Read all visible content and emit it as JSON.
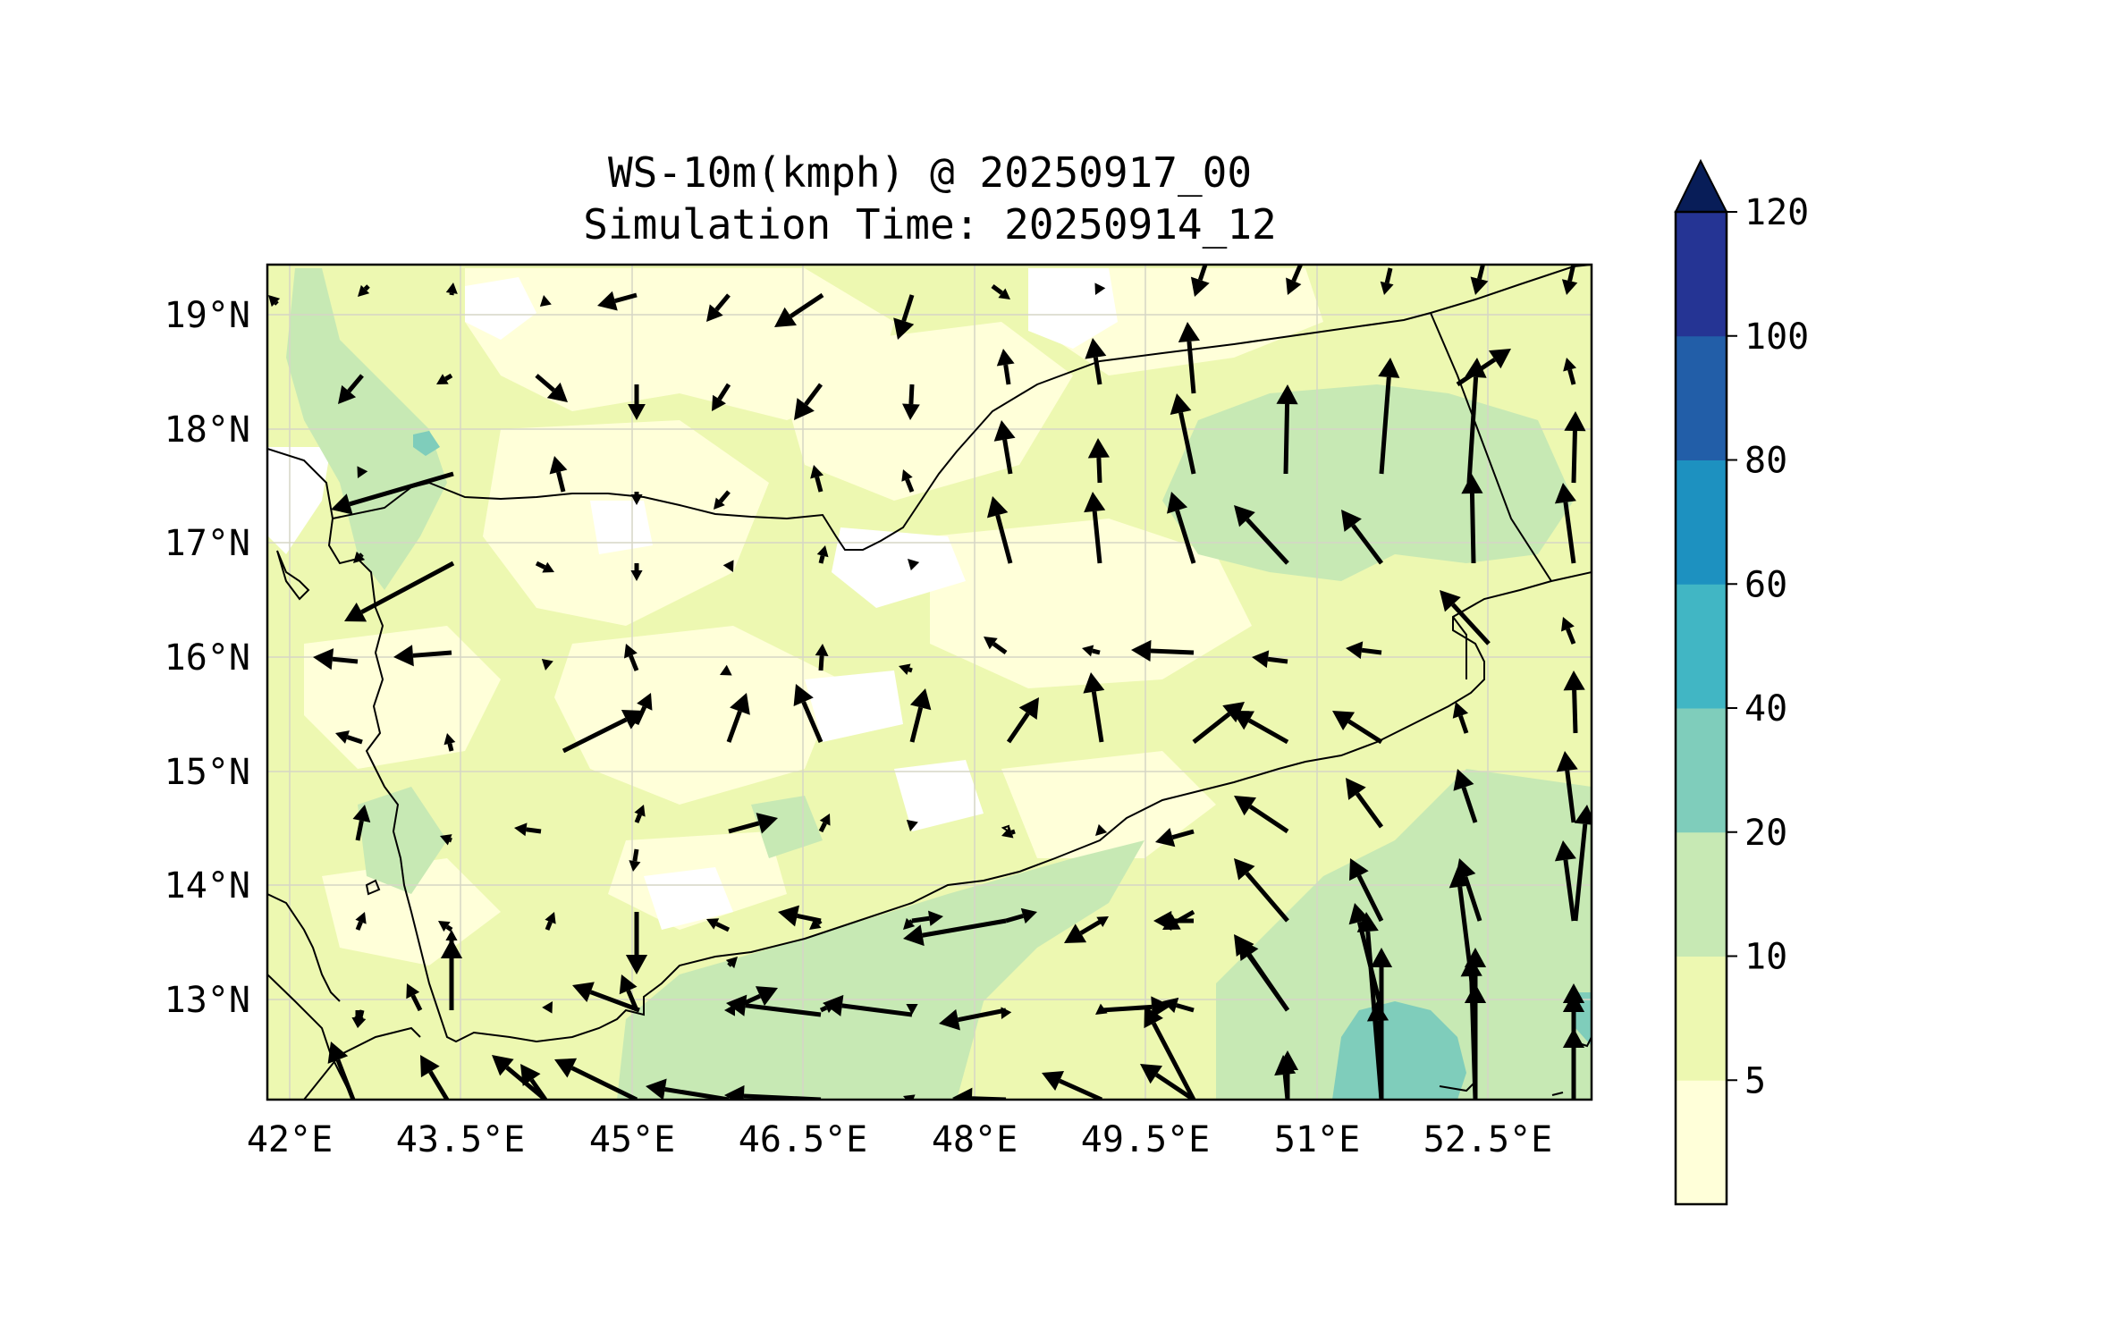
{
  "title": {
    "line1": "WS-10m(kmph) @ 20250917_00",
    "line2": "Simulation Time: 20250914_12"
  },
  "map": {
    "lon_range": [
      42.0,
      53.6
    ],
    "lat_range": [
      12.1,
      19.45
    ],
    "lon_ticks": [
      "42°E",
      "43.5°E",
      "45°E",
      "46.5°E",
      "48°E",
      "49.5°E",
      "51°E",
      "52.5°E"
    ],
    "lat_ticks": [
      "19°N",
      "18°N",
      "17°N",
      "16°N",
      "15°N",
      "14°N",
      "13°N"
    ],
    "grid": true,
    "field_colors": {
      "5-10": "#ffffd9",
      "10-20": "#edf8b1",
      "20-40": "#c7e9b4",
      "40-60": "#7fcdbb",
      "calm": "#ffffff"
    }
  },
  "colorbar": {
    "ticks": [
      "120",
      "100",
      "80",
      "60",
      "40",
      "20",
      "10",
      "5"
    ],
    "levels": [
      5,
      10,
      20,
      40,
      60,
      80,
      100,
      120
    ],
    "colors": [
      "#ffffd9",
      "#edf8b1",
      "#c7e9b4",
      "#7fcdbb",
      "#41b6c4",
      "#1d91c0",
      "#225ea8",
      "#253494"
    ],
    "extend_color": "#081d58",
    "extend": "max"
  }
}
